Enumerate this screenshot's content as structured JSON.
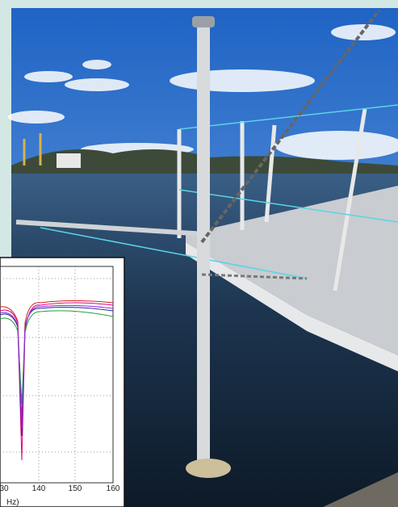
{
  "inset_plot": {
    "xtick_labels": [
      "30",
      "140",
      "150",
      "160"
    ],
    "x_axis_label": "Hz)"
  }
}
